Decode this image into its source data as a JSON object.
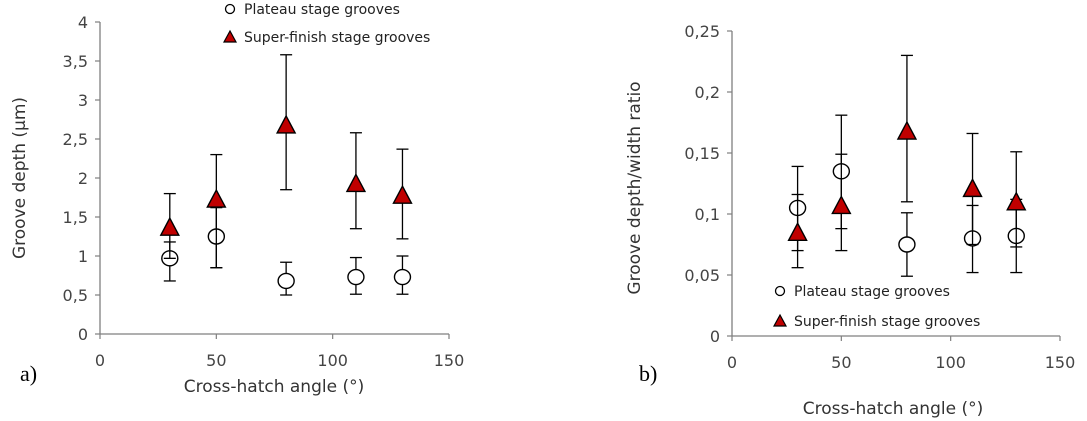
{
  "colors": {
    "marker_fill": "#c00000",
    "axis": "#7f7f7f",
    "errorbar": "#000000"
  },
  "chart_data": [
    {
      "type": "scatter",
      "panel_label": "a)",
      "xlabel": "Cross-hatch angle (°)",
      "ylabel": "Groove depth (μm)",
      "xlim": [
        0,
        150
      ],
      "ylim": [
        0,
        4
      ],
      "xticks": [
        0,
        50,
        100,
        150
      ],
      "xtick_labels": [
        "0",
        "50",
        "100",
        "150"
      ],
      "yticks": [
        0,
        0.5,
        1,
        1.5,
        2,
        2.5,
        3,
        3.5,
        4
      ],
      "ytick_labels": [
        "0",
        "0,5",
        "1",
        "1,5",
        "2",
        "2,5",
        "3",
        "3,5",
        "4"
      ],
      "legend_position": "top-left",
      "series": [
        {
          "name": "Plateau stage grooves",
          "marker": "circle",
          "x": [
            30,
            50,
            80,
            110,
            130
          ],
          "y": [
            0.97,
            1.25,
            0.68,
            0.73,
            0.73
          ],
          "err_low": [
            0.68,
            0.85,
            0.5,
            0.51,
            0.51
          ],
          "err_high": [
            1.18,
            1.62,
            0.92,
            0.98,
            1.0
          ]
        },
        {
          "name": "Super-finish stage grooves",
          "marker": "triangle",
          "x": [
            30,
            50,
            80,
            110,
            130
          ],
          "y": [
            1.37,
            1.73,
            2.68,
            1.93,
            1.78
          ],
          "err_low": [
            0.97,
            0.85,
            1.85,
            1.35,
            1.22
          ],
          "err_high": [
            1.8,
            2.3,
            3.58,
            2.58,
            2.37
          ]
        }
      ]
    },
    {
      "type": "scatter",
      "panel_label": "b)",
      "xlabel": "Cross-hatch angle (°)",
      "ylabel": "Groove depth/width ratio",
      "xlim": [
        0,
        150
      ],
      "ylim": [
        0,
        0.25
      ],
      "xticks": [
        0,
        50,
        100,
        150
      ],
      "xtick_labels": [
        "0",
        "50",
        "100",
        "150"
      ],
      "yticks": [
        0,
        0.05,
        0.1,
        0.15,
        0.2,
        0.25
      ],
      "ytick_labels": [
        "0",
        "0,05",
        "0,1",
        "0,15",
        "0,2",
        "0,25"
      ],
      "legend_position": "bottom-right",
      "series": [
        {
          "name": "Plateau stage grooves",
          "marker": "circle",
          "x": [
            30,
            50,
            80,
            110,
            130
          ],
          "y": [
            0.105,
            0.135,
            0.075,
            0.08,
            0.082
          ],
          "err_low": [
            0.07,
            0.088,
            0.049,
            0.052,
            0.052
          ],
          "err_high": [
            0.139,
            0.181,
            0.101,
            0.107,
            0.112
          ]
        },
        {
          "name": "Super-finish stage grooves",
          "marker": "triangle",
          "x": [
            30,
            50,
            80,
            110,
            130
          ],
          "y": [
            0.085,
            0.107,
            0.168,
            0.121,
            0.11
          ],
          "err_low": [
            0.056,
            0.07,
            0.11,
            0.075,
            0.073
          ],
          "err_high": [
            0.116,
            0.149,
            0.23,
            0.166,
            0.151
          ]
        }
      ]
    }
  ]
}
